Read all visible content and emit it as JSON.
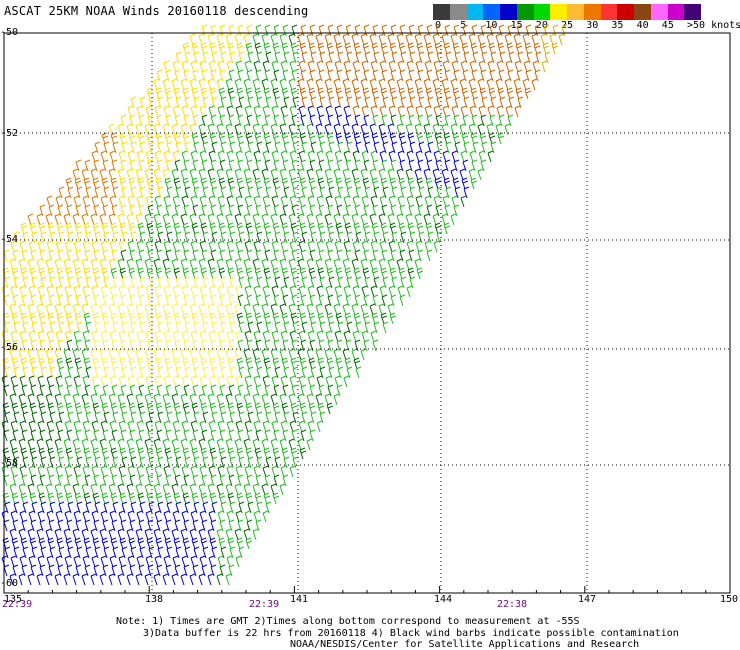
{
  "title": "ASCAT 25KM NOAA Winds 20160118 descending",
  "colorbar": {
    "colors": [
      "#3a3a3a",
      "#8a8a8a",
      "#00b8f0",
      "#0066ff",
      "#0000c8",
      "#009900",
      "#00d800",
      "#ffee00",
      "#ffbb33",
      "#ee7700",
      "#ff3333",
      "#cc0000",
      "#8b4513",
      "#ff66ff",
      "#cc00cc",
      "#440077"
    ],
    "labels": [
      "0",
      "5",
      "10",
      "15",
      "20",
      "25",
      "30",
      "35",
      "40",
      "45",
      ">50 knots"
    ]
  },
  "axes": {
    "lat_labels": [
      "-50",
      "-52",
      "-54",
      "-56",
      "-58",
      "-60"
    ],
    "lon_labels": [
      "135",
      "138",
      "141",
      "144",
      "147",
      "150"
    ],
    "times": [
      "22:39",
      "22:39",
      "22:38"
    ]
  },
  "notes": {
    "line1": "Note: 1) Times are GMT 2)Times along bottom correspond to measurement at -55S",
    "line2": "3)Data buffer is 22 hrs from 20160118 4) Black wind barbs indicate possible contamination",
    "line3": "NOAA/NESDIS/Center for Satellite Applications and Research"
  }
}
